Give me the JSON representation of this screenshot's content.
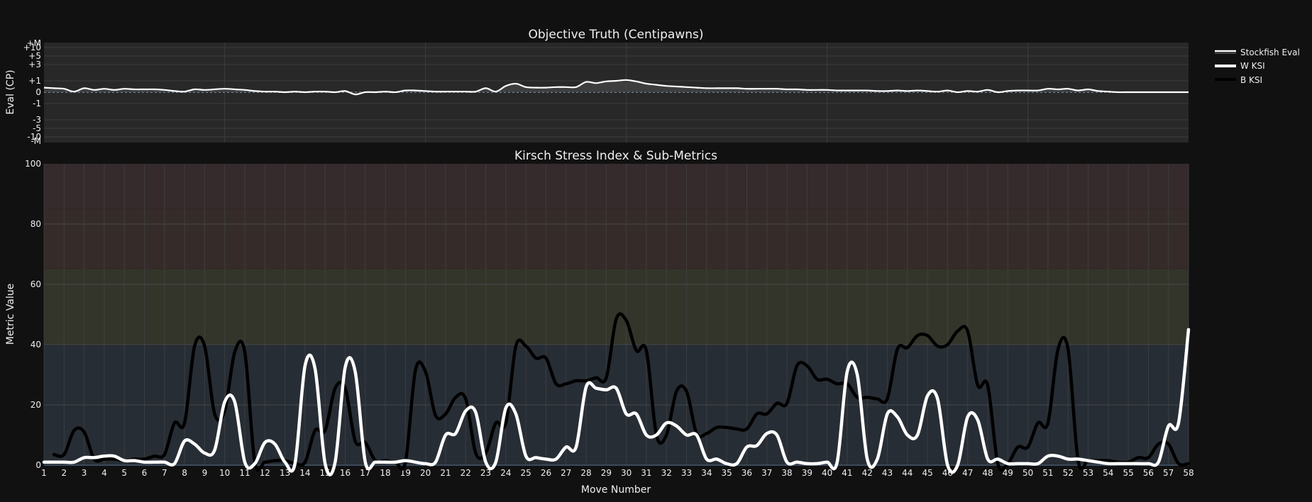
{
  "colors": {
    "page_bg": "#111111",
    "top_plot_bg": "#282828",
    "grid": "#3c3c3c",
    "zero_line": "#6b7c8f",
    "eval_line": "#ffffff",
    "eval_fill": "#444444",
    "w_ksi": "#ffffff",
    "b_ksi": "#000000",
    "band_critical": "#352a2c",
    "band_high": "#352c29",
    "band_moderate": "#34352a",
    "band_low": "#272d34"
  },
  "top_chart": {
    "title": "Objective Truth (Centipawns)",
    "ylabel": "Eval (CP)",
    "yticks": [
      "+M",
      "+10",
      "+5",
      "+3",
      "+1",
      "0",
      "-1",
      "-3",
      "-5",
      "-10",
      "-M"
    ]
  },
  "bottom_chart": {
    "title": "Kirsch Stress Index & Sub-Metrics",
    "ylabel": "Metric Value",
    "xlabel": "Move Number",
    "yticks": [
      "0",
      "20",
      "40",
      "60",
      "80",
      "100"
    ]
  },
  "legend": {
    "items": [
      {
        "label": "Stockfish Eval",
        "style": "eval"
      },
      {
        "label": "W KSI",
        "style": "w"
      },
      {
        "label": "B KSI",
        "style": "b"
      }
    ]
  },
  "chart_data": [
    {
      "type": "area",
      "title": "Objective Truth (Centipawns)",
      "xlabel": "",
      "ylabel": "Eval (CP)",
      "y_scale": "symlog-like (pawns)",
      "ytick_labels": [
        "+M",
        "+10",
        "+5",
        "+3",
        "+1",
        "0",
        "-1",
        "-3",
        "-5",
        "-10",
        "-M"
      ],
      "xlim": [
        1,
        58
      ],
      "series": [
        {
          "name": "Stockfish Eval",
          "x": [
            1,
            1.5,
            2,
            2.5,
            3,
            3.5,
            4,
            4.5,
            5,
            5.5,
            6,
            6.5,
            7,
            7.5,
            8,
            8.5,
            9,
            9.5,
            10,
            10.5,
            11,
            11.5,
            12,
            12.5,
            13,
            13.5,
            14,
            14.5,
            15,
            15.5,
            16,
            16.5,
            17,
            17.5,
            18,
            18.5,
            19,
            19.5,
            20,
            20.5,
            21,
            21.5,
            22,
            22.5,
            23,
            23.5,
            24,
            24.5,
            25,
            25.5,
            26,
            26.5,
            27,
            27.5,
            28,
            28.5,
            29,
            29.5,
            30,
            30.5,
            31,
            31.5,
            32,
            32.5,
            33,
            33.5,
            34,
            34.5,
            35,
            35.5,
            36,
            36.5,
            37,
            37.5,
            38,
            38.5,
            39,
            39.5,
            40,
            40.5,
            41,
            41.5,
            42,
            42.5,
            43,
            43.5,
            44,
            44.5,
            45,
            45.5,
            46,
            46.5,
            47,
            47.5,
            48,
            48.5,
            49,
            49.5,
            50,
            50.5,
            51,
            51.5,
            52,
            52.5,
            53,
            53.5,
            54,
            54.5,
            55,
            55.5,
            56,
            56.5,
            57,
            57.5,
            58
          ],
          "values": [
            0.4,
            0.35,
            0.3,
            0.05,
            0.35,
            0.2,
            0.3,
            0.2,
            0.3,
            0.25,
            0.25,
            0.25,
            0.2,
            0.1,
            0.05,
            0.25,
            0.2,
            0.25,
            0.3,
            0.25,
            0.2,
            0.1,
            0.05,
            0.05,
            0.0,
            0.05,
            0.0,
            0.05,
            0.05,
            0.0,
            0.1,
            -0.2,
            0.0,
            0.0,
            0.05,
            0.0,
            0.15,
            0.15,
            0.1,
            0.05,
            0.05,
            0.05,
            0.05,
            0.05,
            0.35,
            0.05,
            0.55,
            0.75,
            0.45,
            0.4,
            0.4,
            0.45,
            0.45,
            0.45,
            0.9,
            0.8,
            0.95,
            1.0,
            1.1,
            0.95,
            0.75,
            0.65,
            0.55,
            0.5,
            0.45,
            0.4,
            0.35,
            0.35,
            0.35,
            0.35,
            0.3,
            0.3,
            0.3,
            0.3,
            0.25,
            0.25,
            0.2,
            0.2,
            0.2,
            0.15,
            0.15,
            0.15,
            0.15,
            0.1,
            0.1,
            0.15,
            0.1,
            0.15,
            0.1,
            0.05,
            0.15,
            0.0,
            0.1,
            0.05,
            0.2,
            0.0,
            0.1,
            0.15,
            0.15,
            0.15,
            0.3,
            0.25,
            0.3,
            0.15,
            0.25,
            0.1,
            0.05,
            0.0,
            0.0,
            0.0,
            0.0,
            0.0,
            0.0,
            0.0,
            0.0
          ]
        }
      ]
    },
    {
      "type": "line",
      "title": "Kirsch Stress Index & Sub-Metrics",
      "xlabel": "Move Number",
      "ylabel": "Metric Value",
      "xlim": [
        1,
        58
      ],
      "ylim": [
        0,
        100
      ],
      "categories": [
        "1",
        "2",
        "3",
        "4",
        "5",
        "6",
        "7",
        "8",
        "9",
        "10",
        "11",
        "12",
        "13",
        "14",
        "15",
        "16",
        "17",
        "18",
        "19",
        "20",
        "21",
        "22",
        "23",
        "24",
        "25",
        "26",
        "27",
        "28",
        "29",
        "30",
        "31",
        "32",
        "33",
        "34",
        "35",
        "36",
        "37",
        "38",
        "39",
        "40",
        "41",
        "42",
        "43",
        "44",
        "45",
        "46",
        "47",
        "48",
        "49",
        "50",
        "51",
        "52",
        "53",
        "54",
        "55",
        "56",
        "57",
        "58"
      ],
      "bands": [
        {
          "from": 0,
          "to": 40,
          "label": "low"
        },
        {
          "from": 40,
          "to": 65,
          "label": "moderate"
        },
        {
          "from": 65,
          "to": 85,
          "label": "high"
        },
        {
          "from": 85,
          "to": 100,
          "label": "critical"
        }
      ],
      "grid": true,
      "legend_position": "top-right outside",
      "series": [
        {
          "name": "W KSI",
          "color": "#ffffff",
          "x": [
            1,
            1.5,
            2,
            2.5,
            3,
            3.5,
            4,
            4.5,
            5,
            5.5,
            6,
            6.5,
            7,
            7.5,
            8,
            8.5,
            9,
            9.5,
            10,
            10.5,
            11,
            11.5,
            12,
            12.5,
            13,
            13.5,
            14,
            14.5,
            15,
            15.5,
            16,
            16.5,
            17,
            17.5,
            18,
            18.5,
            19,
            19.5,
            20,
            20.5,
            21,
            21.5,
            22,
            22.5,
            23,
            23.5,
            24,
            24.5,
            25,
            25.5,
            26,
            26.5,
            27,
            27.5,
            28,
            28.5,
            29,
            29.5,
            30,
            30.5,
            31,
            31.5,
            32,
            32.5,
            33,
            33.5,
            34,
            34.5,
            35,
            35.5,
            36,
            36.5,
            37,
            37.5,
            38,
            38.5,
            39,
            39.5,
            40,
            40.5,
            41,
            41.5,
            42,
            42.5,
            43,
            43.5,
            44,
            44.5,
            45,
            45.5,
            46,
            46.5,
            47,
            47.5,
            48,
            48.5,
            49,
            49.5,
            50,
            50.5,
            51,
            51.5,
            52,
            52.5,
            53,
            53.5,
            54,
            54.5,
            55,
            55.5,
            56,
            56.5,
            57,
            57.5,
            58
          ],
          "values": [
            1,
            1,
            1,
            1,
            2.5,
            2.5,
            3,
            3,
            1.5,
            1.5,
            1,
            1,
            1,
            0.5,
            8,
            7,
            4,
            5,
            21,
            21,
            1,
            0.5,
            7.5,
            7,
            1,
            0.5,
            33,
            32,
            0.5,
            1,
            32.5,
            31,
            1,
            1,
            1,
            1,
            1.5,
            1,
            0.5,
            1,
            10,
            10.5,
            18,
            17.5,
            1,
            1,
            19,
            17,
            3,
            2.5,
            2,
            2,
            6,
            6,
            26,
            25.5,
            25,
            25.5,
            17,
            17,
            10,
            10,
            14,
            13,
            10,
            10,
            2,
            2,
            0.5,
            0.5,
            6,
            6.5,
            10.5,
            10,
            1,
            1,
            0.5,
            0.5,
            1,
            1,
            31,
            30,
            2,
            2,
            17,
            16,
            10,
            10,
            23,
            22,
            0,
            0,
            16,
            15,
            2,
            2,
            0.5,
            0.5,
            0.5,
            0.5,
            3,
            3,
            2,
            2,
            1.5,
            1,
            0.5,
            0.5,
            0.5,
            0.5,
            0.5,
            1,
            13,
            14,
            45
          ]
        },
        {
          "name": "B KSI",
          "color": "#000000",
          "x": [
            1.5,
            2,
            2.5,
            3,
            3.5,
            4,
            4.5,
            5,
            5.5,
            6,
            6.5,
            7,
            7.5,
            8,
            8.5,
            9,
            9.5,
            10,
            10.5,
            11,
            11.5,
            12,
            12.5,
            13,
            13.5,
            14,
            14.5,
            15,
            15.5,
            16,
            16.5,
            17,
            17.5,
            18,
            18.5,
            19,
            19.5,
            20,
            20.5,
            21,
            21.5,
            22,
            22.5,
            23,
            23.5,
            24,
            24.5,
            25,
            25.5,
            26,
            26.5,
            27,
            27.5,
            28,
            28.5,
            29,
            29.5,
            30,
            30.5,
            31,
            31.5,
            32,
            32.5,
            33,
            33.5,
            34,
            34.5,
            35,
            35.5,
            36,
            36.5,
            37,
            37.5,
            38,
            38.5,
            39,
            39.5,
            40,
            40.5,
            41,
            41.5,
            42,
            42.5,
            43,
            43.5,
            44,
            44.5,
            45,
            45.5,
            46,
            46.5,
            47,
            47.5,
            48,
            48.5,
            49,
            49.5,
            50,
            50.5,
            51,
            51.5,
            52,
            52.5,
            53,
            53.5,
            54,
            54.5,
            55,
            55.5,
            56,
            56.5,
            57,
            57.5,
            58
          ],
          "values": [
            3.5,
            3.5,
            11.5,
            11,
            2,
            2,
            2,
            1.5,
            2,
            2,
            3,
            3.5,
            14,
            14,
            39.5,
            39.5,
            17,
            18,
            37.5,
            37.5,
            1,
            1,
            1.5,
            1.5,
            0.5,
            1,
            11.5,
            11.5,
            25.5,
            25.5,
            8,
            7.5,
            1.5,
            1.5,
            1,
            1,
            31.5,
            31,
            16.5,
            17,
            22.5,
            22,
            4,
            4,
            14,
            14,
            39.5,
            39.5,
            35.5,
            35.5,
            27,
            27,
            28,
            28,
            29,
            29,
            48.5,
            48,
            38,
            38,
            10,
            10,
            24.5,
            24.5,
            10.5,
            10.5,
            12.5,
            12.5,
            12,
            12,
            17,
            17,
            20.5,
            20.5,
            33,
            33,
            28.5,
            28.5,
            27,
            27,
            22.5,
            22.5,
            22,
            22,
            38.5,
            39,
            43,
            43,
            39.5,
            40,
            44.5,
            44.5,
            26.5,
            26.5,
            0.5,
            0.5,
            6,
            6,
            14,
            14,
            38.5,
            38.5,
            1.5,
            1.5,
            1.5,
            1.5,
            1,
            1,
            2.5,
            2.5,
            7,
            7,
            0.5,
            0.5
          ]
        }
      ]
    }
  ]
}
